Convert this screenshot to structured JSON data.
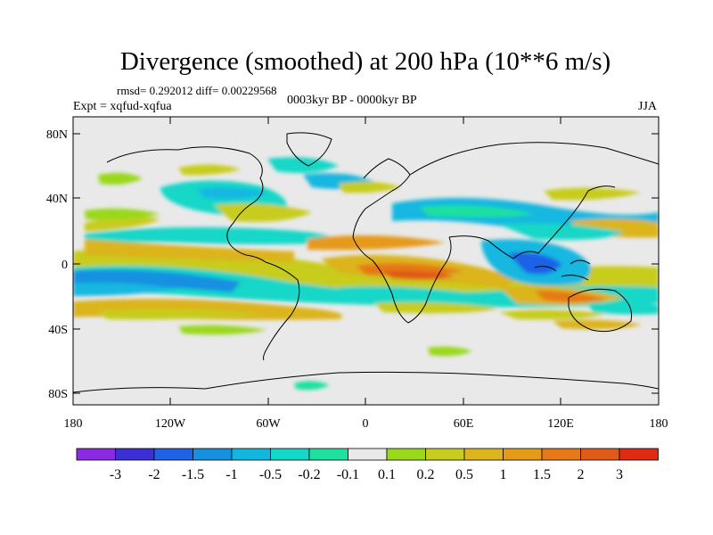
{
  "title": "Divergence (smoothed) at 200 hPa (10**6 m/s)",
  "stats": "rmsd= 0.292012 diff= 0.00229568",
  "experiment": "Expt = xqfud-xqfua",
  "period": "0003kyr BP - 0000kyr BP",
  "season": "JJA",
  "lat_ticks": [
    "80N",
    "40N",
    "0",
    "40S",
    "80S"
  ],
  "lon_ticks": [
    "180",
    "120W",
    "60W",
    "0",
    "60E",
    "120E",
    "180"
  ],
  "legend": {
    "colors": [
      "#8a2be2",
      "#3b2fd6",
      "#1f62e6",
      "#1890e0",
      "#12b7e0",
      "#14d7c8",
      "#1ee0a0",
      "#e9e9e9",
      "#9ad81e",
      "#c8cc1e",
      "#dcb41e",
      "#e69a1a",
      "#e67818",
      "#e05a18",
      "#e02a12"
    ],
    "labels": [
      "-3",
      "-2",
      "-1.5",
      "-1",
      "-0.5",
      "-0.2",
      "-0.1",
      "0.1",
      "0.2",
      "0.5",
      "1",
      "1.5",
      "2",
      "3"
    ]
  },
  "colors": {
    "background": "#e9e9e9",
    "coastline": "#000000"
  }
}
